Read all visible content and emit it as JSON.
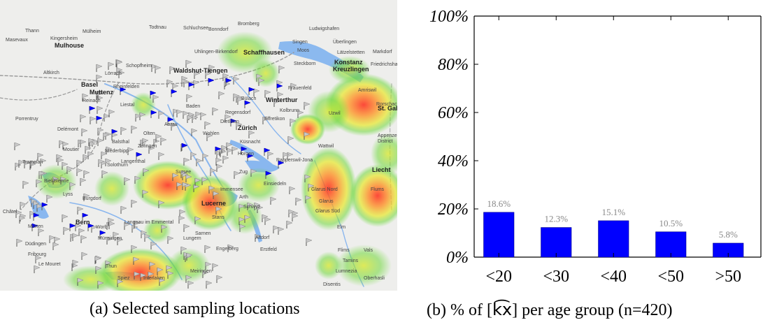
{
  "map": {
    "caption": "(a) Selected sampling locations",
    "place_labels": [
      "Thann",
      "Kingersheim",
      "Mülheim",
      "Todtnau",
      "Schluchsee",
      "Bonndorf",
      "Bromberg",
      "Ludwigshafen",
      "Masevaux",
      "Mulhouse",
      "Singen",
      "Überlingen",
      "Altkirch",
      "Schopfheim",
      "Lörrach",
      "Uhlingen-Birkendorf",
      "Schaffhausen",
      "Moos",
      "Lätzelstetten",
      "Markdorf",
      "Basel",
      "Waldshut-Tiengen",
      "Steckborn",
      "Konstanz",
      "Kreuzlingen",
      "Friedrichshafen",
      "Muttenz",
      "Rheinfelden",
      "Frauenfeld",
      "Reinach",
      "Liestal",
      "Bülach",
      "Winterthur",
      "Amriswil",
      "Porrentruy",
      "Baden",
      "Regensdorf",
      "Kolbrunn",
      "Uzwil",
      "Rorschach",
      "St. Gallen",
      "Delémont",
      "Aarau",
      "Dietlikon",
      "Effretikon",
      "Olten",
      "Wohlen",
      "Zürich",
      "Appenzell",
      "District",
      "Balsthal",
      "Zofingen",
      "Küsnacht",
      "Wattwil",
      "Moutier",
      "Niederbipp",
      "Horgen",
      "Langenthal",
      "Rapperswil-Jona",
      "Liecht",
      "Tramelan",
      "Solothurn",
      "Sursee",
      "Zug",
      "Einsiedeln",
      "Biel/Bienne",
      "Immensee",
      "Glarus Nord",
      "Flums",
      "Lyss",
      "Burgdorf",
      "Arth",
      "Glarus",
      "Glarus Süd",
      "Lucerne",
      "Schwyz",
      "Elm",
      "Bern",
      "Worb",
      "Langnau im Emmental",
      "Stans",
      "Murten",
      "Münsingen",
      "Sarnen",
      "Altdorf",
      "Düdingen",
      "Erstfeld",
      "Engelberg",
      "Fribourg",
      "Lungern",
      "Flims",
      "Tamins",
      "Le Mouret",
      "Thun",
      "Meiringen",
      "Disentis",
      "Lumnezia",
      "Spiez",
      "Interlaken",
      "Vals",
      "Oberhasli",
      "Châtel"
    ]
  },
  "chart_data": {
    "type": "bar",
    "caption": "(b) % of [k̑x] per age group (n=420)",
    "caption_parts": {
      "before": "(b) % of [",
      "ipa": "k͡x",
      "after": "] per age group (n=420)"
    },
    "categories": [
      "<20",
      "<30",
      "<40",
      "<50",
      ">50"
    ],
    "values": [
      18.6,
      12.3,
      15.1,
      10.5,
      5.8
    ],
    "value_labels": [
      "18.6%",
      "12.3%",
      "15.1%",
      "10.5%",
      "5.8%"
    ],
    "y_ticks": [
      0,
      20,
      40,
      60,
      80,
      100
    ],
    "y_tick_labels": [
      "0%",
      "20%",
      "40%",
      "60%",
      "80%",
      "100%"
    ],
    "ylim": [
      0,
      100
    ],
    "bar_color": "#0000ff",
    "grid": false
  }
}
